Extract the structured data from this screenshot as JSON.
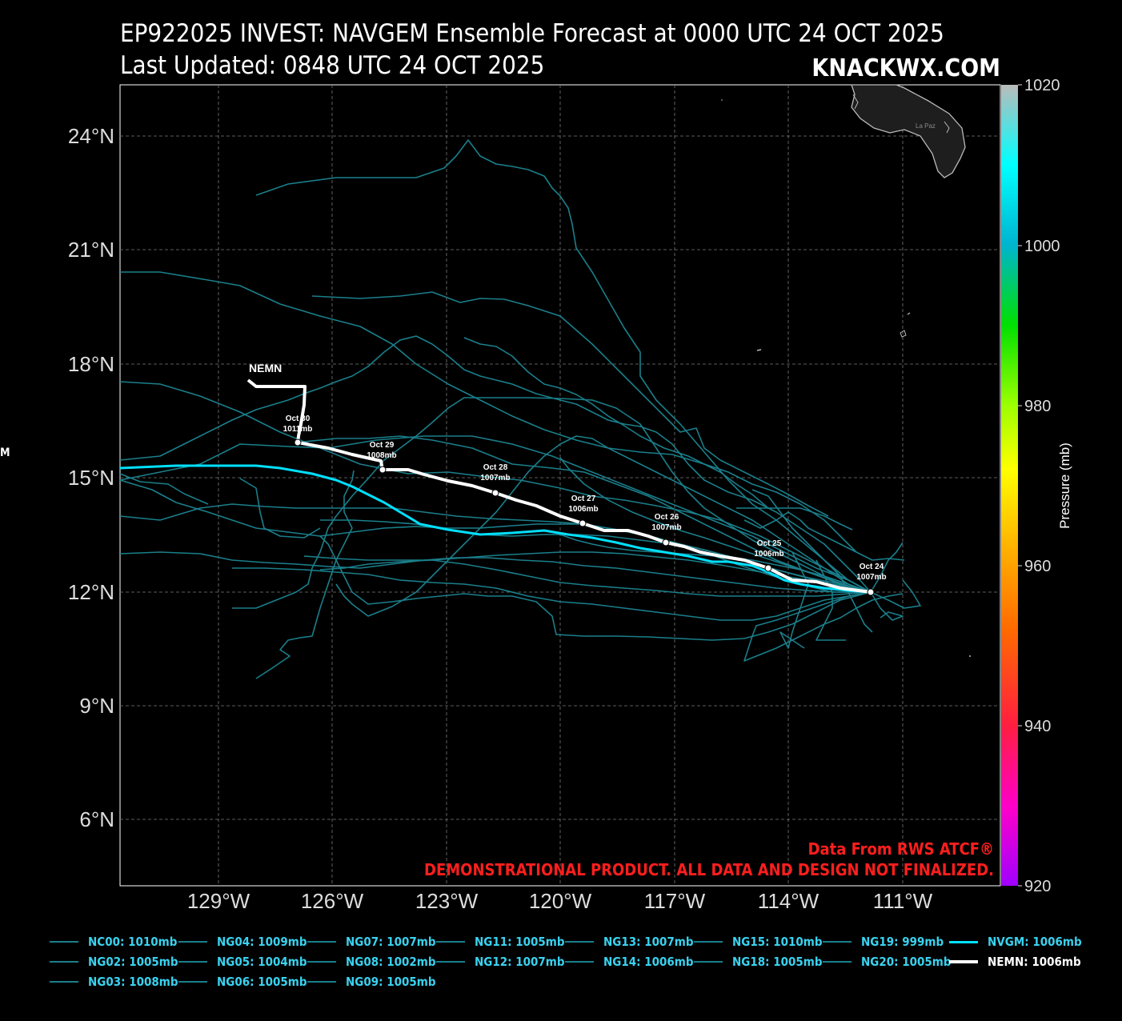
{
  "title_line1": "EP922025 INVEST: NAVGEM Ensemble Forecast at 0000 UTC 24 OCT 2025",
  "title_line2": "Last Updated: 0848 UTC 24 OCT 2025",
  "brand": "KNACKWX.COM",
  "side_fragment": "M",
  "credit_line1": "Data From RWS ATCF®",
  "credit_line2": "DEMONSTRATIONAL PRODUCT. ALL DATA AND DESIGN NOT FINALIZED.",
  "map": {
    "lon_labels": [
      "129°W",
      "126°W",
      "123°W",
      "120°W",
      "117°W",
      "114°W",
      "111°W"
    ],
    "lat_labels": [
      "24°N",
      "21°N",
      "18°N",
      "15°N",
      "12°N",
      "9°N",
      "6°N"
    ],
    "land_label": "La Paz"
  },
  "colorbar": {
    "label": "Pressure (mb)",
    "ticks": [
      "1020",
      "1000",
      "980",
      "960",
      "940",
      "920"
    ]
  },
  "colors": {
    "ensemble": "#1a7f8b",
    "nvgm": "#00e0ff",
    "nemn": "#ffffff",
    "credit": "#ff1e1e",
    "legend_text": "#39d2ef"
  },
  "nemn_label": "NEMN",
  "nemn_points": [
    {
      "date": "Oct 24",
      "pressure": "1007mb"
    },
    {
      "date": "Oct 25",
      "pressure": "1006mb"
    },
    {
      "date": "Oct 26",
      "pressure": "1007mb"
    },
    {
      "date": "Oct 27",
      "pressure": "1006mb"
    },
    {
      "date": "Oct 28",
      "pressure": "1007mb"
    },
    {
      "date": "Oct 29",
      "pressure": "1008mb"
    },
    {
      "date": "Oct 30",
      "pressure": "1011mb"
    }
  ],
  "legend": [
    {
      "label": "NC00: 1010mb",
      "style": "ens"
    },
    {
      "label": "NG02: 1005mb",
      "style": "ens"
    },
    {
      "label": "NG03: 1008mb",
      "style": "ens"
    },
    {
      "label": "NG04: 1009mb",
      "style": "ens"
    },
    {
      "label": "NG05: 1004mb",
      "style": "ens"
    },
    {
      "label": "NG06: 1005mb",
      "style": "ens"
    },
    {
      "label": "NG07: 1007mb",
      "style": "ens"
    },
    {
      "label": "NG08: 1002mb",
      "style": "ens"
    },
    {
      "label": "NG09: 1005mb",
      "style": "ens"
    },
    {
      "label": "NG11: 1005mb",
      "style": "ens"
    },
    {
      "label": "NG12: 1007mb",
      "style": "ens"
    },
    {
      "label": "NG13: 1007mb",
      "style": "ens"
    },
    {
      "label": "NG14: 1006mb",
      "style": "ens"
    },
    {
      "label": "NG15: 1010mb",
      "style": "ens"
    },
    {
      "label": "NG18: 1005mb",
      "style": "ens"
    },
    {
      "label": "NG19: 999mb",
      "style": "ens"
    },
    {
      "label": "NG20: 1005mb",
      "style": "ens"
    },
    {
      "label": "NVGM: 1006mb",
      "style": "cyan"
    },
    {
      "label": "NEMN: 1006mb",
      "style": "white"
    }
  ]
}
